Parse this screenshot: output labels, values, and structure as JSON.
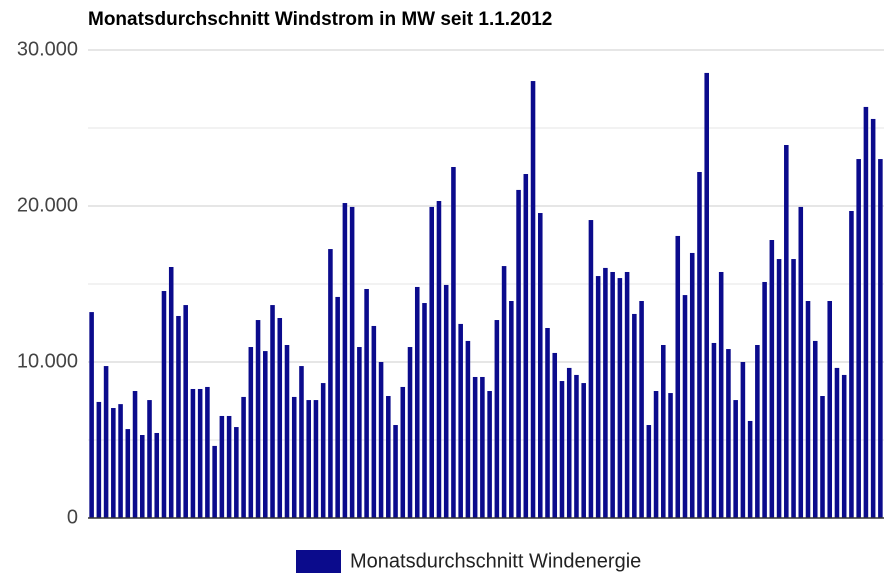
{
  "chart_data": {
    "type": "bar",
    "title": "Monatsdurchschnitt Windstrom in MW seit 1.1.2012",
    "series": [
      {
        "name": "Monatsdurchschnitt Windenergie",
        "color": "#0b0b8c",
        "values": [
          13200,
          7440,
          9740,
          7050,
          7300,
          5700,
          8140,
          5320,
          7560,
          5450,
          14550,
          16090,
          12950,
          13650,
          8270,
          8270,
          8400,
          4620,
          6540,
          6540,
          5830,
          7760,
          10960,
          12690,
          10700,
          13650,
          12820,
          11090,
          7760,
          9740,
          7560,
          7560,
          8650,
          17240,
          14170,
          20190,
          19940,
          10960,
          14680,
          12310,
          10000,
          7820,
          5960,
          8400,
          10960,
          14810,
          13780,
          19940,
          20320,
          14940,
          22500,
          12440,
          11350,
          9040,
          9040,
          8140,
          12690,
          16150,
          13910,
          21030,
          22050,
          28010,
          19550,
          12180,
          10580,
          8780,
          9620,
          9170,
          8650,
          19100,
          15510,
          16030,
          15770,
          15380,
          15770,
          13080,
          13910,
          5960,
          8140,
          11090,
          8010,
          18080,
          14290,
          16990,
          22180,
          28530,
          11220,
          15770,
          10830,
          7560,
          10000,
          6220,
          11090,
          15130,
          17820,
          16600,
          23910,
          16600,
          19940,
          13910,
          11350,
          7820,
          13910,
          9620,
          9170,
          19680,
          23010,
          26350,
          25580,
          23010
        ]
      }
    ],
    "ylim": [
      0,
      30000
    ],
    "yticks": [
      0,
      {
        "value": 10000,
        "label": "10.000"
      },
      {
        "value": 20000,
        "label": "20.000"
      },
      {
        "value": 30000,
        "label": "30.000"
      }
    ],
    "minor_yticks": [
      5000,
      15000,
      25000
    ],
    "grid": true,
    "legend": "bottom"
  }
}
